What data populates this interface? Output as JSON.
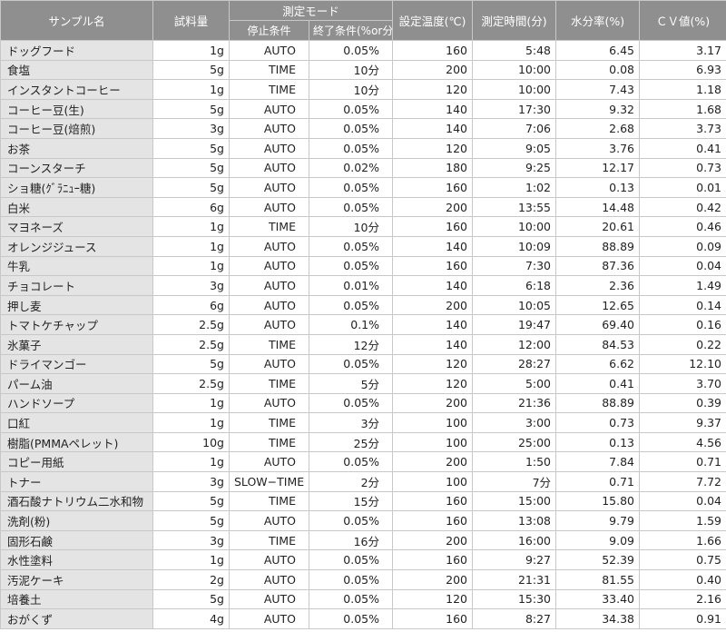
{
  "headers": {
    "sample_name": "サンプル名",
    "amount": "試料量",
    "measure_mode": "測定モード",
    "stop_condition": "停止条件",
    "end_condition": "終了条件(%or分)",
    "set_temp": "設定温度(℃)",
    "measure_time": "測定時間(分)",
    "moisture": "水分率(%)",
    "cv": "ＣＶ値(%)"
  },
  "rows": [
    {
      "name": "ドッグフード",
      "amount": "1g",
      "stop": "AUTO",
      "end": "0.05%",
      "temp": "160",
      "time": "5:48",
      "moisture": "6.45",
      "cv": "3.17"
    },
    {
      "name": "食塩",
      "amount": "5g",
      "stop": "TIME",
      "end": "10分",
      "temp": "200",
      "time": "10:00",
      "moisture": "0.08",
      "cv": "6.93"
    },
    {
      "name": "インスタントコーヒー",
      "amount": "1g",
      "stop": "TIME",
      "end": "10分",
      "temp": "120",
      "time": "10:00",
      "moisture": "7.43",
      "cv": "1.18"
    },
    {
      "name": "コーヒー豆(生)",
      "amount": "5g",
      "stop": "AUTO",
      "end": "0.05%",
      "temp": "140",
      "time": "17:30",
      "moisture": "9.32",
      "cv": "1.68"
    },
    {
      "name": "コーヒー豆(焙煎)",
      "amount": "3g",
      "stop": "AUTO",
      "end": "0.05%",
      "temp": "140",
      "time": "7:06",
      "moisture": "2.68",
      "cv": "3.73"
    },
    {
      "name": "お茶",
      "amount": "5g",
      "stop": "AUTO",
      "end": "0.05%",
      "temp": "120",
      "time": "9:05",
      "moisture": "3.76",
      "cv": "0.41"
    },
    {
      "name": "コーンスターチ",
      "amount": "5g",
      "stop": "AUTO",
      "end": "0.02%",
      "temp": "180",
      "time": "9:25",
      "moisture": "12.17",
      "cv": "0.73"
    },
    {
      "name": "ショ糖(ｸﾞﾗﾆｭｰ糖)",
      "amount": "5g",
      "stop": "AUTO",
      "end": "0.05%",
      "temp": "160",
      "time": "1:02",
      "moisture": "0.13",
      "cv": "0.01"
    },
    {
      "name": "白米",
      "amount": "6g",
      "stop": "AUTO",
      "end": "0.05%",
      "temp": "200",
      "time": "13:55",
      "moisture": "14.48",
      "cv": "0.42"
    },
    {
      "name": "マヨネーズ",
      "amount": "1g",
      "stop": "TIME",
      "end": "10分",
      "temp": "160",
      "time": "10:00",
      "moisture": "20.61",
      "cv": "0.46"
    },
    {
      "name": "オレンジジュース",
      "amount": "1g",
      "stop": "AUTO",
      "end": "0.05%",
      "temp": "140",
      "time": "10:09",
      "moisture": "88.89",
      "cv": "0.09"
    },
    {
      "name": "牛乳",
      "amount": "1g",
      "stop": "AUTO",
      "end": "0.05%",
      "temp": "160",
      "time": "7:30",
      "moisture": "87.36",
      "cv": "0.04"
    },
    {
      "name": "チョコレート",
      "amount": "3g",
      "stop": "AUTO",
      "end": "0.01%",
      "temp": "140",
      "time": "6:18",
      "moisture": "2.36",
      "cv": "1.49"
    },
    {
      "name": "押し麦",
      "amount": "6g",
      "stop": "AUTO",
      "end": "0.05%",
      "temp": "200",
      "time": "10:05",
      "moisture": "12.65",
      "cv": "0.14"
    },
    {
      "name": "トマトケチャップ",
      "amount": "2.5g",
      "stop": "AUTO",
      "end": "0.1%",
      "temp": "140",
      "time": "19:47",
      "moisture": "69.40",
      "cv": "0.16"
    },
    {
      "name": "氷菓子",
      "amount": "2.5g",
      "stop": "TIME",
      "end": "12分",
      "temp": "140",
      "time": "12:00",
      "moisture": "84.53",
      "cv": "0.22"
    },
    {
      "name": "ドライマンゴー",
      "amount": "5g",
      "stop": "AUTO",
      "end": "0.05%",
      "temp": "120",
      "time": "28:27",
      "moisture": "6.62",
      "cv": "12.10"
    },
    {
      "name": "パーム油",
      "amount": "2.5g",
      "stop": "TIME",
      "end": "5分",
      "temp": "120",
      "time": "5:00",
      "moisture": "0.41",
      "cv": "3.70"
    },
    {
      "name": "ハンドソープ",
      "amount": "1g",
      "stop": "AUTO",
      "end": "0.05%",
      "temp": "200",
      "time": "21:36",
      "moisture": "88.89",
      "cv": "0.39"
    },
    {
      "name": "口紅",
      "amount": "1g",
      "stop": "TIME",
      "end": "3分",
      "temp": "100",
      "time": "3:00",
      "moisture": "0.73",
      "cv": "9.37"
    },
    {
      "name": "樹脂(PMMAペレット)",
      "amount": "10g",
      "stop": "TIME",
      "end": "25分",
      "temp": "100",
      "time": "25:00",
      "moisture": "0.13",
      "cv": "4.56"
    },
    {
      "name": "コピー用紙",
      "amount": "1g",
      "stop": "AUTO",
      "end": "0.05%",
      "temp": "200",
      "time": "1:50",
      "moisture": "7.84",
      "cv": "0.71"
    },
    {
      "name": "トナー",
      "amount": "3g",
      "stop": "SLOW−TIME",
      "end": "2分",
      "temp": "100",
      "time": "7分",
      "moisture": "0.71",
      "cv": "7.72"
    },
    {
      "name": "酒石酸ナトリウム二水和物",
      "amount": "5g",
      "stop": "TIME",
      "end": "15分",
      "temp": "160",
      "time": "15:00",
      "moisture": "15.80",
      "cv": "0.04"
    },
    {
      "name": "洗剤(粉)",
      "amount": "5g",
      "stop": "AUTO",
      "end": "0.05%",
      "temp": "160",
      "time": "13:08",
      "moisture": "9.79",
      "cv": "1.59"
    },
    {
      "name": "固形石鹸",
      "amount": "3g",
      "stop": "TIME",
      "end": "16分",
      "temp": "200",
      "time": "16:00",
      "moisture": "9.09",
      "cv": "1.66"
    },
    {
      "name": "水性塗料",
      "amount": "1g",
      "stop": "AUTO",
      "end": "0.05%",
      "temp": "160",
      "time": "9:27",
      "moisture": "52.39",
      "cv": "0.75"
    },
    {
      "name": "汚泥ケーキ",
      "amount": "2g",
      "stop": "AUTO",
      "end": "0.05%",
      "temp": "200",
      "time": "21:31",
      "moisture": "81.55",
      "cv": "0.40"
    },
    {
      "name": "培養土",
      "amount": "5g",
      "stop": "AUTO",
      "end": "0.05%",
      "temp": "120",
      "time": "15:30",
      "moisture": "33.40",
      "cv": "2.16"
    },
    {
      "name": "おがくず",
      "amount": "4g",
      "stop": "AUTO",
      "end": "0.05%",
      "temp": "160",
      "time": "8:27",
      "moisture": "34.38",
      "cv": "0.91"
    }
  ]
}
